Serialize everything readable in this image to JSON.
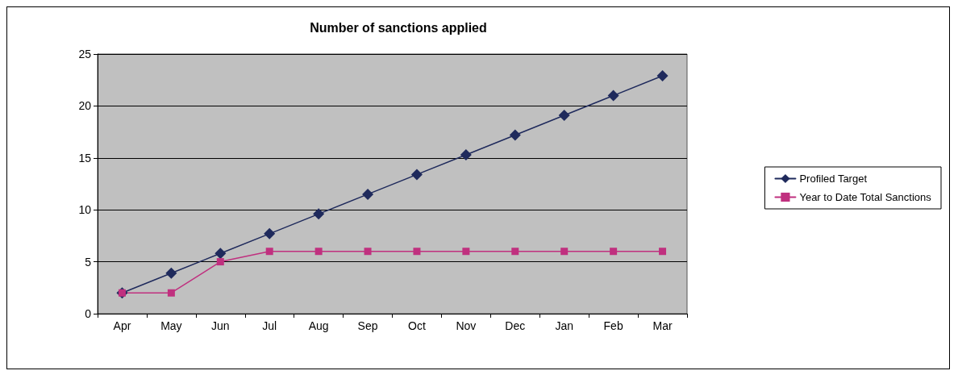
{
  "chart_data": {
    "type": "line",
    "title": "Number of sanctions applied",
    "categories": [
      "Apr",
      "May",
      "Jun",
      "Jul",
      "Aug",
      "Sep",
      "Oct",
      "Nov",
      "Dec",
      "Jan",
      "Feb",
      "Mar"
    ],
    "series": [
      {
        "name": "Profiled Target",
        "color": "#1f2a5c",
        "marker": "diamond",
        "values": [
          2,
          3.9,
          5.8,
          7.7,
          9.6,
          11.5,
          13.4,
          15.3,
          17.2,
          19.1,
          21,
          22.9
        ]
      },
      {
        "name": "Year to Date Total Sanctions",
        "color": "#c0307f",
        "marker": "square",
        "values": [
          2,
          2,
          5,
          6,
          6,
          6,
          6,
          6,
          6,
          6,
          6,
          6
        ]
      }
    ],
    "ylim": [
      0,
      25
    ],
    "yticks": [
      0,
      5,
      10,
      15,
      20,
      25
    ],
    "grid": "y",
    "legend": "right",
    "line_style": "solid"
  }
}
